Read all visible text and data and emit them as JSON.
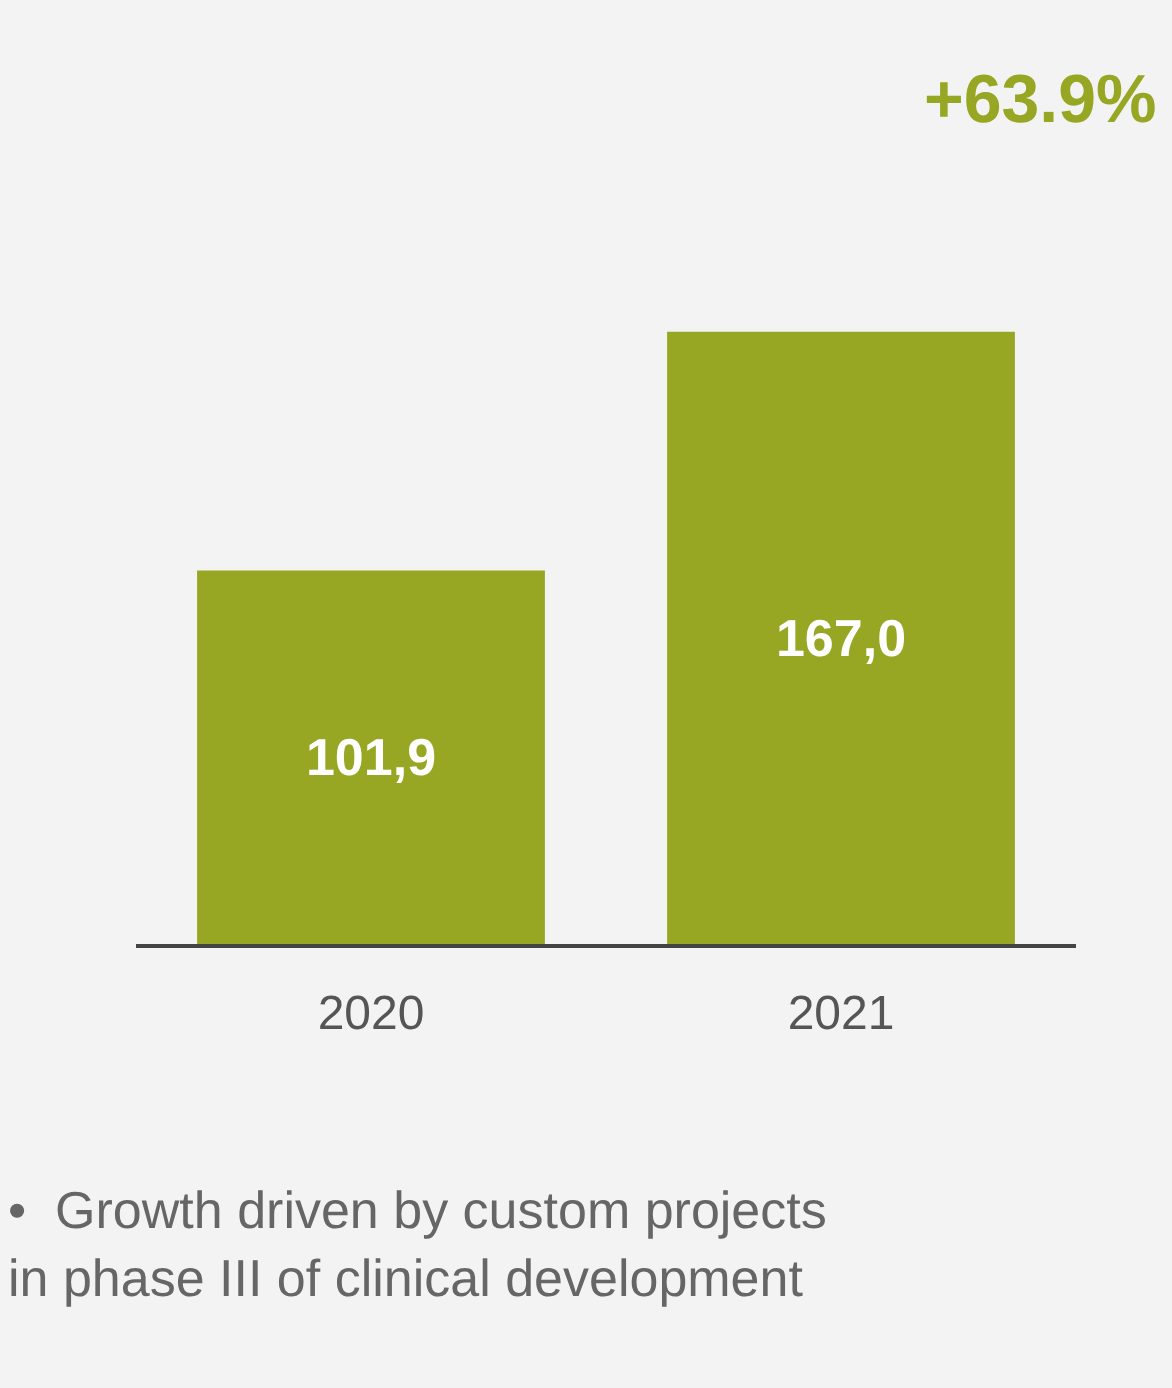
{
  "chart_data": {
    "type": "bar",
    "categories": [
      "2020",
      "2021"
    ],
    "values": [
      101.9,
      167.0
    ],
    "value_labels": [
      "101,9",
      "167,0"
    ],
    "color": "#97a623",
    "grid": false,
    "legend": false,
    "tick_labels": "x",
    "annotations": [
      "+63.9%",
      "•  Growth driven by custom projects in phase III of clinical development"
    ]
  }
}
